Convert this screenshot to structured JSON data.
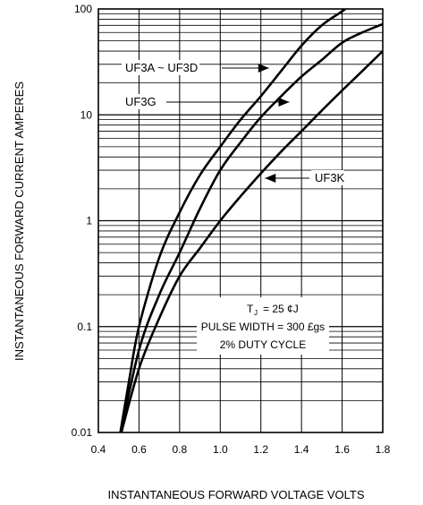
{
  "chart_data": {
    "type": "line",
    "xlabel": "INSTANTANEOUS FORWARD VOLTAGE VOLTS",
    "ylabel": "INSTANTANEOUS FORWARD CURRENT AMPERES",
    "xlim": [
      0.4,
      1.8
    ],
    "ylim": [
      0.01,
      100
    ],
    "yscale": "log",
    "grid": true,
    "x_ticks": [
      "0.4",
      "0.6",
      "0.8",
      "1.0",
      "1.2",
      "1.4",
      "1.6",
      "1.8"
    ],
    "y_ticks": [
      "0.01",
      "0.1",
      "1",
      "10",
      "100"
    ],
    "series": [
      {
        "name": "UF3A ~ UF3D",
        "points": [
          [
            0.5,
            0.008
          ],
          [
            0.55,
            0.03
          ],
          [
            0.6,
            0.1
          ],
          [
            0.7,
            0.45
          ],
          [
            0.8,
            1.2
          ],
          [
            0.9,
            2.7
          ],
          [
            1.0,
            5.0
          ],
          [
            1.1,
            9.0
          ],
          [
            1.2,
            15
          ],
          [
            1.3,
            26
          ],
          [
            1.4,
            45
          ],
          [
            1.5,
            70
          ],
          [
            1.6,
            95
          ],
          [
            1.7,
            130
          ]
        ]
      },
      {
        "name": "UF3G",
        "points": [
          [
            0.5,
            0.008
          ],
          [
            0.6,
            0.06
          ],
          [
            0.7,
            0.2
          ],
          [
            0.8,
            0.5
          ],
          [
            0.9,
            1.3
          ],
          [
            1.0,
            3.0
          ],
          [
            1.1,
            5.5
          ],
          [
            1.2,
            9.5
          ],
          [
            1.3,
            15
          ],
          [
            1.4,
            23
          ],
          [
            1.5,
            33
          ],
          [
            1.6,
            48
          ],
          [
            1.7,
            60
          ],
          [
            1.8,
            72
          ]
        ]
      },
      {
        "name": "UF3K",
        "points": [
          [
            0.5,
            0.008
          ],
          [
            0.6,
            0.04
          ],
          [
            0.7,
            0.12
          ],
          [
            0.8,
            0.3
          ],
          [
            0.9,
            0.55
          ],
          [
            1.0,
            1.0
          ],
          [
            1.1,
            1.7
          ],
          [
            1.2,
            2.8
          ],
          [
            1.3,
            4.5
          ],
          [
            1.4,
            7.0
          ],
          [
            1.5,
            11
          ],
          [
            1.6,
            17
          ],
          [
            1.7,
            26
          ],
          [
            1.8,
            40
          ]
        ]
      }
    ],
    "labels": [
      {
        "text": "UF3A ~ UF3D",
        "arrow_to": [
          1.24,
          17
        ]
      },
      {
        "text": "UF3G",
        "arrow_to": [
          1.34,
          12
        ]
      },
      {
        "text": "UF3K",
        "arrow_to": [
          1.22,
          2.8
        ]
      }
    ],
    "annotation_lines": [
      "T",
      "J",
      "= 25 ¢J",
      "PULSE WIDTH = 300 £gs",
      "2% DUTY CYCLE"
    ]
  }
}
